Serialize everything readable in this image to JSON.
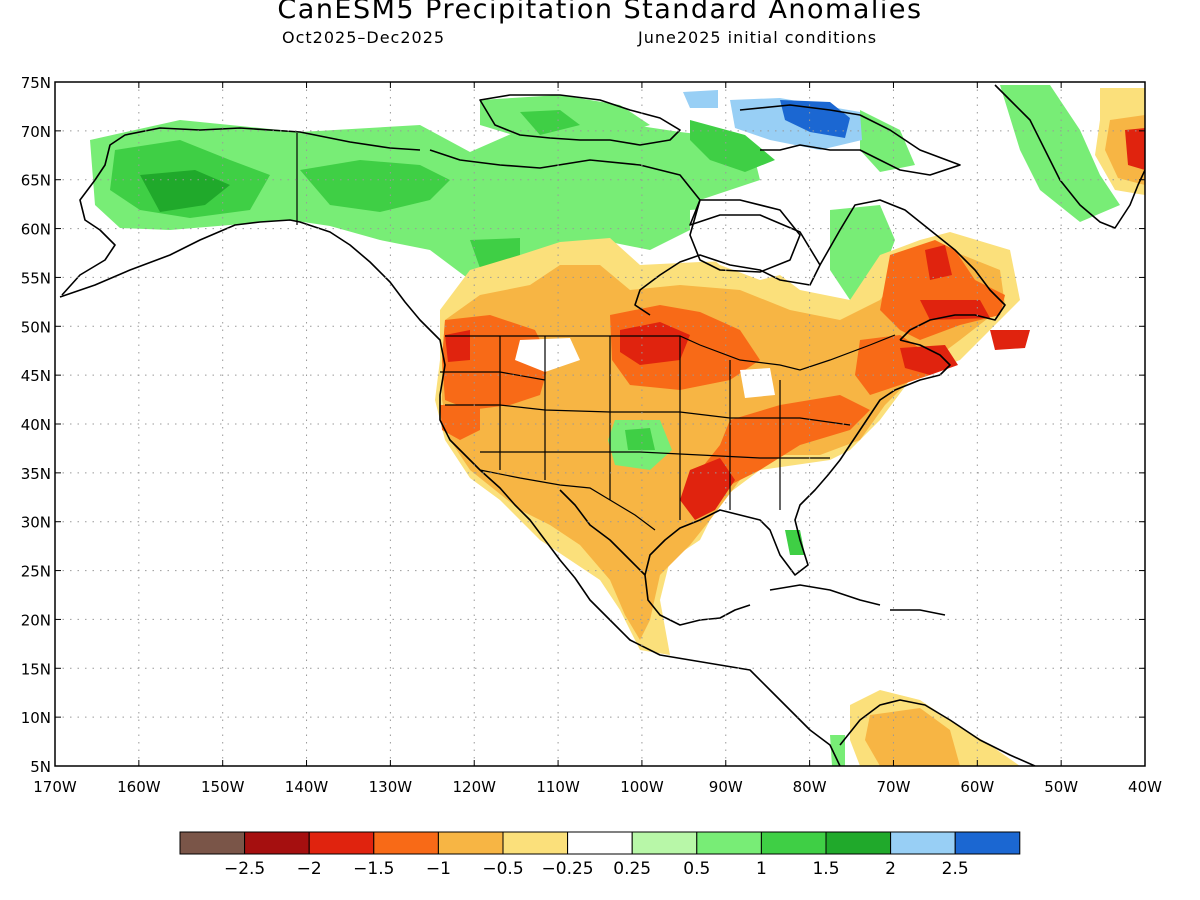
{
  "header": {
    "title": "CanESM5 Precipitation Standard Anomalies",
    "period": "Oct2025–Dec2025",
    "init": "June2025 initial conditions"
  },
  "axes": {
    "lat_labels": [
      "75N",
      "70N",
      "65N",
      "60N",
      "55N",
      "50N",
      "45N",
      "40N",
      "35N",
      "30N",
      "25N",
      "20N",
      "15N",
      "10N",
      "5N"
    ],
    "lat_values": [
      75,
      70,
      65,
      60,
      55,
      50,
      45,
      40,
      35,
      30,
      25,
      20,
      15,
      10,
      5
    ],
    "lon_labels": [
      "170W",
      "160W",
      "150W",
      "140W",
      "130W",
      "120W",
      "110W",
      "100W",
      "90W",
      "80W",
      "70W",
      "60W",
      "50W",
      "40W"
    ],
    "lon_values": [
      -170,
      -160,
      -150,
      -140,
      -130,
      -120,
      -110,
      -100,
      -90,
      -80,
      -70,
      -60,
      -50,
      -40
    ],
    "lon_range": [
      -170,
      -40
    ],
    "lat_range": [
      5,
      75
    ],
    "grid": "dotted"
  },
  "colorbar": {
    "colors": [
      "#7a5548",
      "#a50f0f",
      "#e0230e",
      "#f86a17",
      "#f7b544",
      "#fbe07b",
      "#ffffff",
      "#b8f7a8",
      "#78ed76",
      "#3fcf45",
      "#20a92b",
      "#98cff5",
      "#1b67d2"
    ],
    "labels": [
      "−2.5",
      "−2",
      "−1.5",
      "−1",
      "−0.5",
      "−0.25",
      "0.25",
      "0.5",
      "1",
      "1.5",
      "2",
      "2.5"
    ]
  }
}
